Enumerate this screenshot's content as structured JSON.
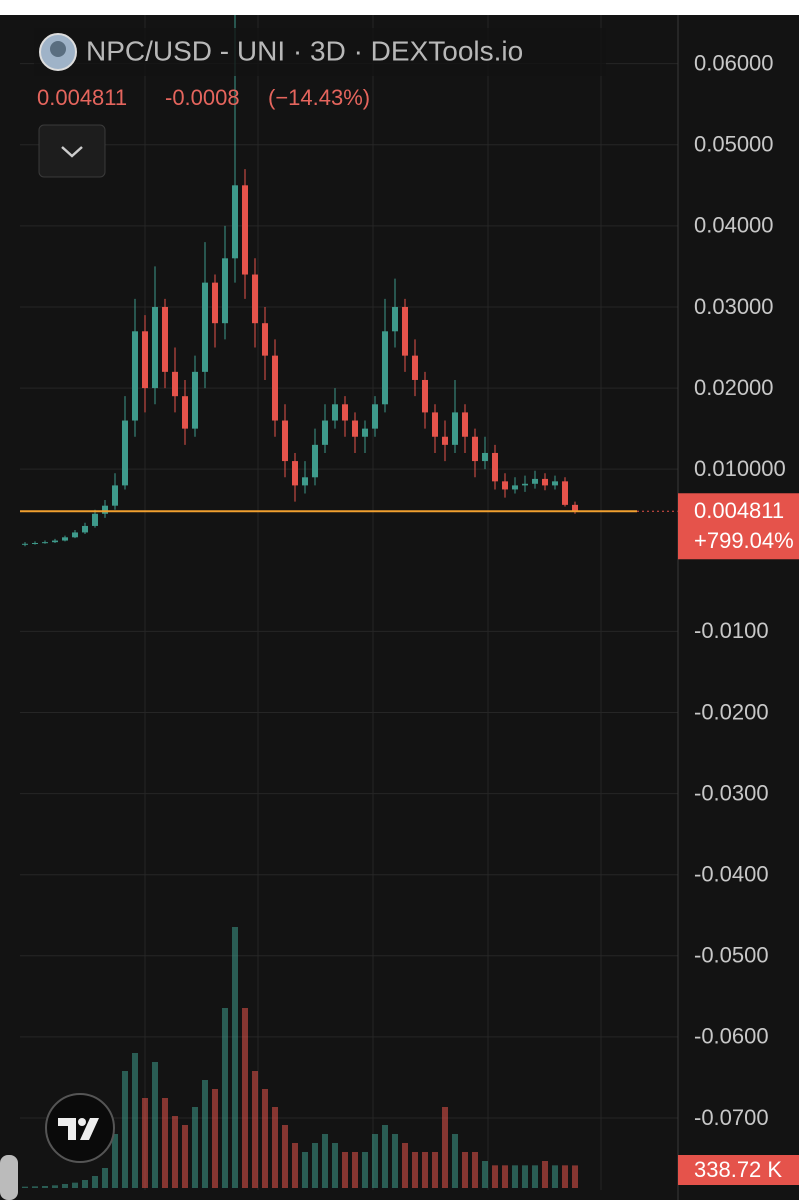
{
  "chart_data": {
    "type": "candlestick",
    "title": "NPC/USD - UNI · 3D · DEXTools.io",
    "last_price": 0.004811,
    "change": -0.0008,
    "change_percent": "(−14.43%)",
    "total_change": "+799.04%",
    "up_color": "#3e9a8b",
    "down_color": "#e5534b",
    "price_line_color": "#f0a030",
    "ylim": [
      -0.079,
      0.066
    ],
    "yticks": [
      {
        "value": 0.06,
        "label": "0.06000"
      },
      {
        "value": 0.05,
        "label": "0.05000"
      },
      {
        "value": 0.04,
        "label": "0.04000"
      },
      {
        "value": 0.03,
        "label": "0.03000"
      },
      {
        "value": 0.02,
        "label": "0.02000"
      },
      {
        "value": 0.01,
        "label": "0.010000"
      },
      {
        "value": -0.01,
        "label": "-0.0100"
      },
      {
        "value": -0.02,
        "label": "-0.0200"
      },
      {
        "value": -0.03,
        "label": "-0.0300"
      },
      {
        "value": -0.04,
        "label": "-0.0400"
      },
      {
        "value": -0.05,
        "label": "-0.0500"
      },
      {
        "value": -0.06,
        "label": "-0.0600"
      },
      {
        "value": -0.07,
        "label": "-0.0700"
      }
    ],
    "grid": true,
    "open": [
      0.0007,
      0.0008,
      0.0009,
      0.001,
      0.0012,
      0.0016,
      0.0022,
      0.003,
      0.0045,
      0.0055,
      0.008,
      0.016,
      0.027,
      0.02,
      0.03,
      0.022,
      0.019,
      0.015,
      0.022,
      0.033,
      0.028,
      0.036,
      0.045,
      0.034,
      0.028,
      0.024,
      0.016,
      0.011,
      0.008,
      0.009,
      0.013,
      0.016,
      0.018,
      0.016,
      0.014,
      0.015,
      0.018,
      0.027,
      0.03,
      0.024,
      0.021,
      0.017,
      0.014,
      0.013,
      0.017,
      0.014,
      0.011,
      0.012,
      0.0085,
      0.0075,
      0.008,
      0.0082,
      0.0088,
      0.008,
      0.0085,
      0.0056
    ],
    "high": [
      0.001,
      0.0011,
      0.0012,
      0.0014,
      0.0018,
      0.0025,
      0.0034,
      0.005,
      0.0062,
      0.0095,
      0.019,
      0.031,
      0.029,
      0.035,
      0.031,
      0.025,
      0.021,
      0.024,
      0.038,
      0.034,
      0.04,
      0.066,
      0.047,
      0.036,
      0.03,
      0.026,
      0.018,
      0.012,
      0.011,
      0.015,
      0.018,
      0.02,
      0.019,
      0.017,
      0.016,
      0.019,
      0.031,
      0.0335,
      0.031,
      0.026,
      0.022,
      0.018,
      0.016,
      0.021,
      0.018,
      0.015,
      0.014,
      0.013,
      0.0095,
      0.009,
      0.0092,
      0.0098,
      0.0095,
      0.0092,
      0.009,
      0.006
    ],
    "low": [
      0.0005,
      0.0007,
      0.0008,
      0.0009,
      0.0011,
      0.0015,
      0.002,
      0.0028,
      0.004,
      0.005,
      0.0075,
      0.014,
      0.017,
      0.018,
      0.02,
      0.017,
      0.013,
      0.014,
      0.02,
      0.025,
      0.026,
      0.033,
      0.031,
      0.025,
      0.021,
      0.014,
      0.009,
      0.006,
      0.007,
      0.008,
      0.012,
      0.015,
      0.014,
      0.012,
      0.012,
      0.014,
      0.017,
      0.025,
      0.022,
      0.019,
      0.015,
      0.012,
      0.011,
      0.012,
      0.012,
      0.009,
      0.01,
      0.0075,
      0.0065,
      0.007,
      0.0072,
      0.0076,
      0.0074,
      0.0075,
      0.0054,
      0.0045
    ],
    "close": [
      0.0008,
      0.0009,
      0.001,
      0.0012,
      0.0016,
      0.0022,
      0.003,
      0.0045,
      0.0055,
      0.008,
      0.016,
      0.027,
      0.02,
      0.03,
      0.022,
      0.019,
      0.015,
      0.022,
      0.033,
      0.028,
      0.036,
      0.045,
      0.034,
      0.028,
      0.024,
      0.016,
      0.011,
      0.008,
      0.009,
      0.013,
      0.016,
      0.018,
      0.016,
      0.014,
      0.015,
      0.018,
      0.027,
      0.03,
      0.024,
      0.021,
      0.017,
      0.014,
      0.013,
      0.017,
      0.014,
      0.011,
      0.012,
      0.0085,
      0.0075,
      0.008,
      0.0082,
      0.0088,
      0.008,
      0.0085,
      0.0056,
      0.004811
    ],
    "volume": {
      "ylim": [
        0,
        4500000
      ],
      "values": [
        20000,
        25000,
        30000,
        40000,
        60000,
        80000,
        120000,
        180000,
        300000,
        810000,
        1755000,
        2025000,
        1350000,
        1890000,
        1350000,
        1080000,
        945000,
        1215000,
        1620000,
        1485000,
        2700000,
        3915000,
        2700000,
        1755000,
        1485000,
        1215000,
        945000,
        675000,
        540000,
        675000,
        810000,
        675000,
        540000,
        540000,
        540000,
        810000,
        945000,
        810000,
        675000,
        540000,
        540000,
        540000,
        1215000,
        810000,
        540000,
        540000,
        405000,
        340000,
        340000,
        340000,
        340000,
        340000,
        405000,
        340000,
        340000,
        338720
      ],
      "value_labels": [
        null,
        null,
        null,
        null,
        null,
        null,
        null,
        null,
        null,
        null,
        null,
        null,
        null,
        null,
        null,
        null,
        null,
        null,
        null,
        null,
        null,
        null,
        null,
        null,
        null,
        null,
        null,
        null,
        null,
        null,
        null,
        null,
        null,
        null,
        null,
        null,
        null,
        null,
        null,
        null,
        null,
        null,
        null,
        null,
        null,
        null,
        null,
        null,
        null,
        null,
        null,
        null,
        null,
        null,
        null,
        "338.72 K"
      ]
    }
  }
}
